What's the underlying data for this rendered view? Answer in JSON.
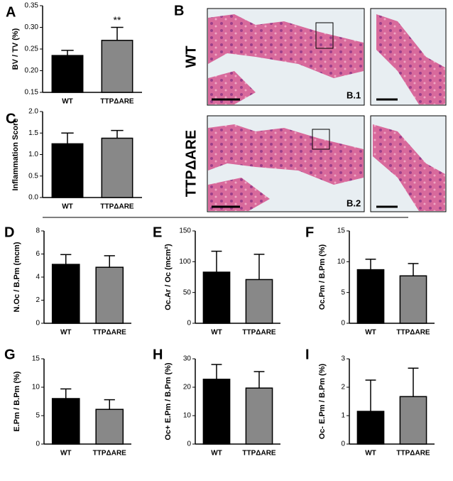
{
  "chart_data": [
    {
      "type": "bar",
      "panel": "A",
      "ylabel": "BV / TV (%)",
      "categories": [
        "WT",
        "TTPΔARE"
      ],
      "values": [
        0.235,
        0.27
      ],
      "errors": [
        0.012,
        0.03
      ],
      "colors": [
        "#000000",
        "#888888"
      ],
      "ylim": [
        0.15,
        0.35
      ],
      "yticks": [
        0.15,
        {
          "value": 0.2,
          "label": "0.20"
        },
        0.25,
        {
          "value": 0.3,
          "label": "0.30"
        },
        0.35
      ],
      "annotation": "**"
    },
    {
      "type": "bar",
      "panel": "C",
      "ylabel": "Inflammation Score",
      "categories": [
        "WT",
        "TTPΔARE"
      ],
      "values": [
        1.25,
        1.38
      ],
      "errors": [
        0.25,
        0.18
      ],
      "colors": [
        "#000000",
        "#888888"
      ],
      "ylim": [
        0,
        2
      ],
      "yticks": [
        {
          "value": 0,
          "label": "0.0"
        },
        0.5,
        {
          "value": 1,
          "label": "1.0"
        },
        1.5,
        {
          "value": 2,
          "label": "2.0"
        }
      ]
    },
    {
      "type": "bar",
      "panel": "D",
      "ylabel": "N.Oc / B.Pm (mcm)",
      "categories": [
        "WT",
        "TTPΔARE"
      ],
      "values": [
        5.1,
        4.85
      ],
      "errors": [
        0.85,
        1.0
      ],
      "colors": [
        "#000000",
        "#888888"
      ],
      "ylim": [
        0,
        8
      ],
      "yticks": [
        0,
        2,
        4,
        6,
        8
      ]
    },
    {
      "type": "bar",
      "panel": "E",
      "ylabel": "Oc.Ar / Oc (mcm²)",
      "categories": [
        "WT",
        "TTPΔARE"
      ],
      "values": [
        83,
        71
      ],
      "errors": [
        34,
        41
      ],
      "colors": [
        "#000000",
        "#888888"
      ],
      "ylim": [
        0,
        150
      ],
      "yticks": [
        0,
        50,
        100,
        150
      ]
    },
    {
      "type": "bar",
      "panel": "F",
      "ylabel": "Oc.Pm / B.Pm (%)",
      "categories": [
        "WT",
        "TTPΔARE"
      ],
      "values": [
        8.7,
        7.7
      ],
      "errors": [
        1.7,
        2.0
      ],
      "colors": [
        "#000000",
        "#888888"
      ],
      "ylim": [
        0,
        15
      ],
      "yticks": [
        0,
        5,
        10,
        15
      ]
    },
    {
      "type": "bar",
      "panel": "G",
      "ylabel": "E.Pm / B.Pm (%)",
      "categories": [
        "WT",
        "TTPΔARE"
      ],
      "values": [
        8.0,
        6.1
      ],
      "errors": [
        1.7,
        1.7
      ],
      "colors": [
        "#000000",
        "#888888"
      ],
      "ylim": [
        0,
        15
      ],
      "yticks": [
        0,
        5,
        10,
        15
      ]
    },
    {
      "type": "bar",
      "panel": "H",
      "ylabel": "Oc+ E.Pm / B.Pm (%)",
      "categories": [
        "WT",
        "TTPΔARE"
      ],
      "values": [
        22.8,
        19.7
      ],
      "errors": [
        5.2,
        5.8
      ],
      "colors": [
        "#000000",
        "#888888"
      ],
      "ylim": [
        0,
        30
      ],
      "yticks": [
        0,
        10,
        20,
        30
      ]
    },
    {
      "type": "bar",
      "panel": "I",
      "ylabel": "Oc- E.Pm / B.Pm (%)",
      "categories": [
        "WT",
        "TTPΔARE"
      ],
      "values": [
        1.15,
        1.67
      ],
      "errors": [
        1.1,
        1.0
      ],
      "colors": [
        "#000000",
        "#888888"
      ],
      "ylim": [
        0,
        3
      ],
      "yticks": [
        0,
        1,
        2,
        3
      ]
    }
  ],
  "figure_b": {
    "panel": "B",
    "row_labels": [
      "WT",
      "TTPΔARE"
    ],
    "image_labels": [
      "B.1",
      "B.2"
    ]
  }
}
